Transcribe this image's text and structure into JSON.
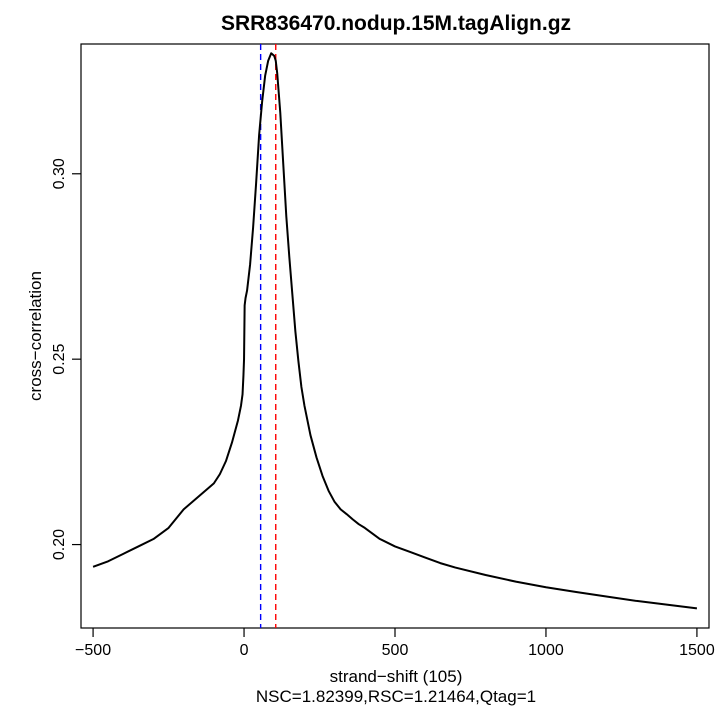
{
  "chart_data": {
    "type": "line",
    "title": "SRR836470.nodup.15M.tagAlign.gz",
    "xlabel": "strand−shift (105)",
    "subxlabel": "NSC=1.82399,RSC=1.21464,Qtag=1",
    "ylabel": "cross−correlation",
    "xlim": [
      -540,
      1540
    ],
    "ylim": [
      0.1775,
      0.335
    ],
    "xticks": [
      -500,
      0,
      500,
      1000,
      1500
    ],
    "xtick_labels": [
      "−500",
      "0",
      "500",
      "1000",
      "1500"
    ],
    "yticks": [
      0.2,
      0.25,
      0.3
    ],
    "ytick_labels": [
      "0.20",
      "0.25",
      "0.30"
    ],
    "grid": false,
    "legend": "none",
    "series": [
      {
        "color": "#000000",
        "x": [
          -500,
          -450,
          -400,
          -350,
          -300,
          -250,
          -200,
          -150,
          -100,
          -80,
          -60,
          -40,
          -20,
          -10,
          -5,
          -2,
          0,
          2,
          5,
          10,
          20,
          30,
          40,
          50,
          60,
          70,
          80,
          90,
          100,
          105,
          110,
          120,
          130,
          140,
          150,
          160,
          170,
          180,
          190,
          200,
          220,
          240,
          260,
          280,
          300,
          320,
          340,
          360,
          380,
          400,
          450,
          500,
          550,
          600,
          650,
          700,
          800,
          900,
          1000,
          1100,
          1200,
          1300,
          1400,
          1500
        ],
        "y": [
          0.194,
          0.1955,
          0.1975,
          0.1995,
          0.2015,
          0.2045,
          0.2095,
          0.213,
          0.2165,
          0.219,
          0.2225,
          0.2275,
          0.2335,
          0.2375,
          0.2405,
          0.2455,
          0.25,
          0.2645,
          0.2665,
          0.2685,
          0.2755,
          0.2855,
          0.2975,
          0.3105,
          0.3195,
          0.3265,
          0.3305,
          0.3325,
          0.3318,
          0.3305,
          0.327,
          0.3165,
          0.3025,
          0.2885,
          0.2775,
          0.2675,
          0.2575,
          0.2495,
          0.2425,
          0.2375,
          0.2295,
          0.2235,
          0.2185,
          0.2145,
          0.2115,
          0.2095,
          0.2082,
          0.2068,
          0.2055,
          0.2045,
          0.2015,
          0.1995,
          0.198,
          0.1965,
          0.195,
          0.1938,
          0.1918,
          0.19,
          0.1885,
          0.1872,
          0.186,
          0.1848,
          0.1838,
          0.1828
        ]
      }
    ],
    "vlines": [
      {
        "x": 55,
        "color": "#0000ff",
        "style": "dashed"
      },
      {
        "x": 105,
        "color": "#ff0000",
        "style": "dashed"
      }
    ]
  }
}
